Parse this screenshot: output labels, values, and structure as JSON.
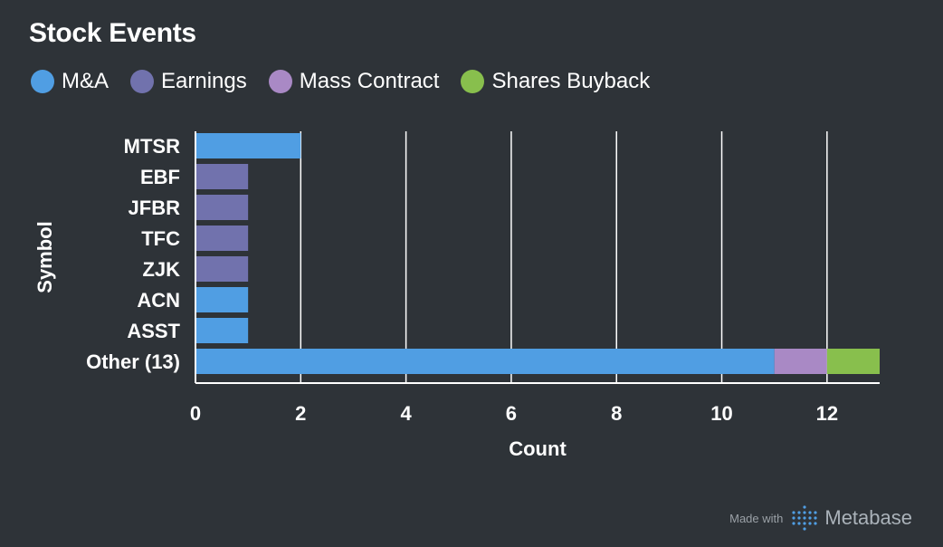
{
  "title": "Stock Events",
  "legend": [
    {
      "label": "M&A",
      "color": "#509ee3"
    },
    {
      "label": "Earnings",
      "color": "#7172ad"
    },
    {
      "label": "Mass Contract",
      "color": "#a989c5"
    },
    {
      "label": "Shares Buyback",
      "color": "#88bf4d"
    }
  ],
  "chart_data": {
    "type": "bar",
    "orientation": "horizontal",
    "stacked": true,
    "xlabel": "Count",
    "ylabel": "Symbol",
    "xlim": [
      0,
      13
    ],
    "xticks": [
      0,
      2,
      4,
      6,
      8,
      10,
      12
    ],
    "grid": true,
    "legend_position": "top-left",
    "categories": [
      "MTSR",
      "EBF",
      "JFBR",
      "TFC",
      "ZJK",
      "ACN",
      "ASST",
      "Other (13)"
    ],
    "series": [
      {
        "name": "M&A",
        "color": "#509ee3",
        "values": [
          2,
          0,
          0,
          0,
          0,
          1,
          1,
          11
        ]
      },
      {
        "name": "Earnings",
        "color": "#7172ad",
        "values": [
          0,
          1,
          1,
          1,
          1,
          0,
          0,
          0
        ]
      },
      {
        "name": "Mass Contract",
        "color": "#a989c5",
        "values": [
          0,
          0,
          0,
          0,
          0,
          0,
          0,
          1
        ]
      },
      {
        "name": "Shares Buyback",
        "color": "#88bf4d",
        "values": [
          0,
          0,
          0,
          0,
          0,
          0,
          0,
          1
        ]
      }
    ]
  },
  "footer": {
    "made_with": "Made with",
    "brand": "Metabase",
    "logo_icon": "metabase-logo-icon"
  }
}
